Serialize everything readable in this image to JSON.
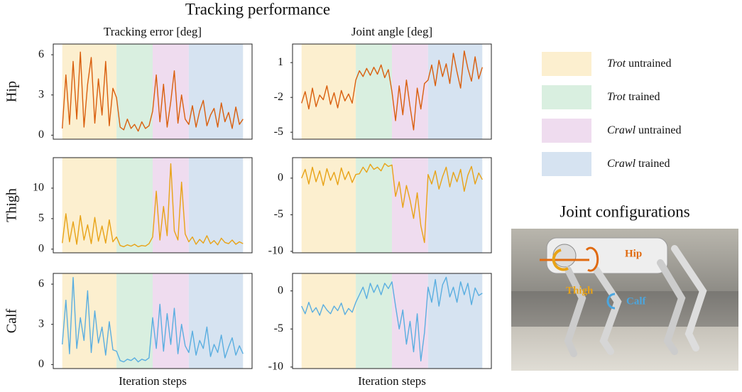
{
  "title": "Tracking performance",
  "legend": [
    {
      "name": "Trot untrained",
      "color": "#fcefcf"
    },
    {
      "name": "Trot trained",
      "color": "#d9efe0"
    },
    {
      "name": "Crawl untrained",
      "color": "#efdcef"
    },
    {
      "name": "Crawl trained",
      "color": "#d6e3f1"
    }
  ],
  "photo": {
    "title": "Joint configurations",
    "labels": [
      {
        "text": "Hip",
        "color": "#e06a10"
      },
      {
        "text": "Thigh",
        "color": "#e8a317"
      },
      {
        "text": "Calf",
        "color": "#4aa6e0"
      }
    ]
  },
  "chart_data": [
    {
      "type": "line",
      "title": "Tracking error [deg]",
      "ylabel": "Hip",
      "color": "#d95f0e",
      "xlim": [
        -5,
        105
      ],
      "ylim": [
        -0.3,
        6.8
      ],
      "yticks": [
        0,
        3,
        6
      ],
      "phases": [
        0,
        30,
        50,
        70,
        100
      ],
      "x": [
        0,
        2,
        4,
        6,
        8,
        10,
        12,
        14,
        16,
        18,
        20,
        22,
        24,
        26,
        28,
        30,
        32,
        34,
        36,
        38,
        40,
        42,
        44,
        46,
        48,
        50,
        52,
        54,
        56,
        58,
        60,
        62,
        64,
        66,
        68,
        70,
        72,
        74,
        76,
        78,
        80,
        82,
        84,
        86,
        88,
        90,
        92,
        94,
        96,
        98,
        100
      ],
      "values": [
        0.5,
        4.5,
        0.8,
        5.5,
        1.2,
        6.2,
        0.6,
        3.8,
        5.8,
        0.9,
        4.2,
        1.5,
        5.5,
        0.7,
        3.5,
        2.8,
        0.6,
        0.4,
        1.2,
        0.5,
        0.8,
        0.3,
        1.0,
        0.5,
        0.7,
        1.8,
        4.5,
        1.0,
        3.8,
        0.6,
        2.5,
        4.8,
        0.9,
        3.0,
        1.2,
        0.8,
        2.2,
        0.6,
        1.8,
        2.6,
        0.7,
        1.5,
        2.0,
        0.6,
        2.4,
        1.0,
        1.7,
        0.5,
        2.1,
        0.8,
        1.2
      ]
    },
    {
      "type": "line",
      "title": "Joint angle [deg]",
      "color": "#d95f0e",
      "xlim": [
        -5,
        105
      ],
      "ylim": [
        -5.6,
        2.6
      ],
      "yticks": [
        1,
        -2,
        -5
      ],
      "phases": [
        0,
        30,
        50,
        70,
        100
      ],
      "x": [
        0,
        2,
        4,
        6,
        8,
        10,
        12,
        14,
        16,
        18,
        20,
        22,
        24,
        26,
        28,
        30,
        32,
        34,
        36,
        38,
        40,
        42,
        44,
        46,
        48,
        50,
        52,
        54,
        56,
        58,
        60,
        62,
        64,
        66,
        68,
        70,
        72,
        74,
        76,
        78,
        80,
        82,
        84,
        86,
        88,
        90,
        92,
        94,
        96,
        98,
        100
      ],
      "values": [
        -2.5,
        -1.5,
        -3.0,
        -1.2,
        -2.8,
        -1.8,
        -2.2,
        -1.0,
        -2.6,
        -1.6,
        -2.9,
        -1.4,
        -2.3,
        -1.7,
        -2.5,
        -0.5,
        0.3,
        -0.2,
        0.5,
        -0.1,
        0.6,
        0.0,
        0.8,
        -0.3,
        0.4,
        -1.5,
        -4.0,
        -1.0,
        -3.5,
        -0.5,
        -2.8,
        -4.8,
        -1.2,
        -3.0,
        -0.8,
        -0.5,
        0.8,
        -1.0,
        1.2,
        -0.2,
        0.9,
        -0.8,
        1.8,
        0.2,
        -1.2,
        2.0,
        0.5,
        -0.6,
        1.5,
        -0.4,
        0.6
      ]
    },
    {
      "type": "line",
      "ylabel": "Thigh",
      "color": "#e8a317",
      "xlim": [
        -5,
        105
      ],
      "ylim": [
        -0.6,
        15
      ],
      "yticks": [
        0,
        5,
        10
      ],
      "phases": [
        0,
        30,
        50,
        70,
        100
      ],
      "x": [
        0,
        2,
        4,
        6,
        8,
        10,
        12,
        14,
        16,
        18,
        20,
        22,
        24,
        26,
        28,
        30,
        32,
        34,
        36,
        38,
        40,
        42,
        44,
        46,
        48,
        50,
        52,
        54,
        56,
        58,
        60,
        62,
        64,
        66,
        68,
        70,
        72,
        74,
        76,
        78,
        80,
        82,
        84,
        86,
        88,
        90,
        92,
        94,
        96,
        98,
        100
      ],
      "values": [
        1.0,
        5.8,
        1.2,
        4.5,
        0.8,
        5.5,
        1.5,
        4.0,
        0.9,
        5.2,
        1.3,
        3.8,
        1.0,
        4.8,
        1.2,
        2.0,
        0.6,
        0.4,
        0.7,
        0.5,
        0.8,
        0.4,
        0.6,
        0.5,
        0.9,
        2.0,
        9.5,
        1.5,
        7.0,
        2.2,
        14.0,
        3.0,
        1.5,
        11.0,
        2.5,
        1.2,
        2.0,
        0.8,
        1.6,
        1.0,
        2.2,
        0.9,
        1.4,
        0.7,
        1.8,
        1.1,
        0.9,
        1.5,
        0.8,
        1.2,
        0.9
      ]
    },
    {
      "type": "line",
      "color": "#e8a317",
      "xlim": [
        -5,
        105
      ],
      "ylim": [
        -10.2,
        2.8
      ],
      "yticks": [
        0,
        -5,
        -10
      ],
      "phases": [
        0,
        30,
        50,
        70,
        100
      ],
      "x": [
        0,
        2,
        4,
        6,
        8,
        10,
        12,
        14,
        16,
        18,
        20,
        22,
        24,
        26,
        28,
        30,
        32,
        34,
        36,
        38,
        40,
        42,
        44,
        46,
        48,
        50,
        52,
        54,
        56,
        58,
        60,
        62,
        64,
        66,
        68,
        70,
        72,
        74,
        76,
        78,
        80,
        82,
        84,
        86,
        88,
        90,
        92,
        94,
        96,
        98,
        100
      ],
      "values": [
        0.0,
        1.2,
        -0.8,
        1.5,
        -0.5,
        1.0,
        -1.0,
        1.3,
        -0.3,
        0.8,
        -0.9,
        1.4,
        -0.2,
        0.9,
        -0.6,
        0.5,
        0.6,
        1.5,
        0.8,
        1.9,
        1.2,
        1.5,
        1.0,
        2.0,
        1.6,
        1.8,
        -2.5,
        -0.5,
        -4.0,
        -1.0,
        -3.0,
        -5.5,
        -2.0,
        -6.5,
        -8.8,
        0.5,
        -0.8,
        1.0,
        -1.5,
        0.2,
        1.5,
        -1.2,
        0.8,
        -0.5,
        1.2,
        -1.8,
        0.4,
        1.6,
        -0.8,
        0.7,
        -0.2
      ]
    },
    {
      "type": "line",
      "ylabel": "Calf",
      "xlabel": "Iteration steps",
      "color": "#5aaee0",
      "xlim": [
        -5,
        105
      ],
      "ylim": [
        -0.3,
        6.8
      ],
      "yticks": [
        0,
        3,
        6
      ],
      "phases": [
        0,
        30,
        50,
        70,
        100
      ],
      "x": [
        0,
        2,
        4,
        6,
        8,
        10,
        12,
        14,
        16,
        18,
        20,
        22,
        24,
        26,
        28,
        30,
        32,
        34,
        36,
        38,
        40,
        42,
        44,
        46,
        48,
        50,
        52,
        54,
        56,
        58,
        60,
        62,
        64,
        66,
        68,
        70,
        72,
        74,
        76,
        78,
        80,
        82,
        84,
        86,
        88,
        90,
        92,
        94,
        96,
        98,
        100
      ],
      "values": [
        1.5,
        4.8,
        0.8,
        6.5,
        1.2,
        3.5,
        1.8,
        5.5,
        0.9,
        4.0,
        1.6,
        2.8,
        0.7,
        3.2,
        1.1,
        1.0,
        0.3,
        0.2,
        0.4,
        0.3,
        0.5,
        0.2,
        0.4,
        0.3,
        0.5,
        3.5,
        1.2,
        4.5,
        1.0,
        3.8,
        1.5,
        4.2,
        0.8,
        3.0,
        1.4,
        0.9,
        2.5,
        0.7,
        1.8,
        1.2,
        2.8,
        0.6,
        1.5,
        0.9,
        2.2,
        0.5,
        1.3,
        2.0,
        0.7,
        1.4,
        0.8
      ]
    },
    {
      "type": "line",
      "xlabel": "Iteration steps",
      "color": "#5aaee0",
      "xlim": [
        -5,
        105
      ],
      "ylim": [
        -10.2,
        2.3
      ],
      "yticks": [
        0,
        -5,
        -10
      ],
      "phases": [
        0,
        30,
        50,
        70,
        100
      ],
      "x": [
        0,
        2,
        4,
        6,
        8,
        10,
        12,
        14,
        16,
        18,
        20,
        22,
        24,
        26,
        28,
        30,
        32,
        34,
        36,
        38,
        40,
        42,
        44,
        46,
        48,
        50,
        52,
        54,
        56,
        58,
        60,
        62,
        64,
        66,
        68,
        70,
        72,
        74,
        76,
        78,
        80,
        82,
        84,
        86,
        88,
        90,
        92,
        94,
        96,
        98,
        100
      ],
      "values": [
        -2.0,
        -3.0,
        -1.5,
        -2.8,
        -2.2,
        -3.2,
        -1.8,
        -2.5,
        -3.0,
        -2.0,
        -2.6,
        -1.6,
        -3.1,
        -2.3,
        -2.8,
        -1.5,
        -0.5,
        0.5,
        -1.0,
        1.0,
        -0.2,
        0.8,
        -0.5,
        1.0,
        0.3,
        1.2,
        -2.0,
        -5.0,
        -2.5,
        -7.0,
        -4.0,
        -8.0,
        -3.0,
        -9.2,
        -5.5,
        0.5,
        -1.5,
        1.5,
        -2.0,
        0.8,
        1.8,
        -0.8,
        0.5,
        -1.5,
        1.2,
        -0.5,
        1.0,
        -1.8,
        0.4,
        -0.6,
        -0.3
      ]
    }
  ]
}
